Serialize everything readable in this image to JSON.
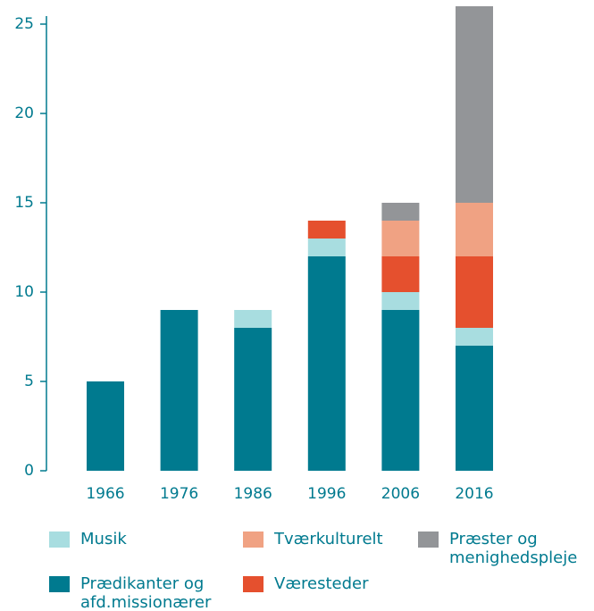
{
  "chart_data": {
    "type": "stacked_bar",
    "categories": [
      "1966",
      "1976",
      "1986",
      "1996",
      "2006",
      "2016"
    ],
    "series": [
      {
        "name": "Prædikanter og afd.missionærer",
        "color": "#007a8f",
        "values": [
          5,
          9,
          8,
          12,
          9,
          7
        ]
      },
      {
        "name": "Musik",
        "color": "#a8dde0",
        "values": [
          0,
          0,
          1,
          1,
          1,
          1
        ]
      },
      {
        "name": "Væresteder",
        "color": "#e5502e",
        "values": [
          0,
          0,
          0,
          1,
          2,
          4
        ]
      },
      {
        "name": "Tværkulturelt",
        "color": "#f0a283",
        "values": [
          0,
          0,
          0,
          0,
          2,
          3
        ]
      },
      {
        "name": "Præster og menighedspleje",
        "color": "#939598",
        "values": [
          0,
          0,
          0,
          0,
          1,
          11
        ]
      }
    ],
    "ylim": [
      0,
      26
    ],
    "yticks": [
      0,
      5,
      10,
      15,
      20,
      25
    ]
  }
}
